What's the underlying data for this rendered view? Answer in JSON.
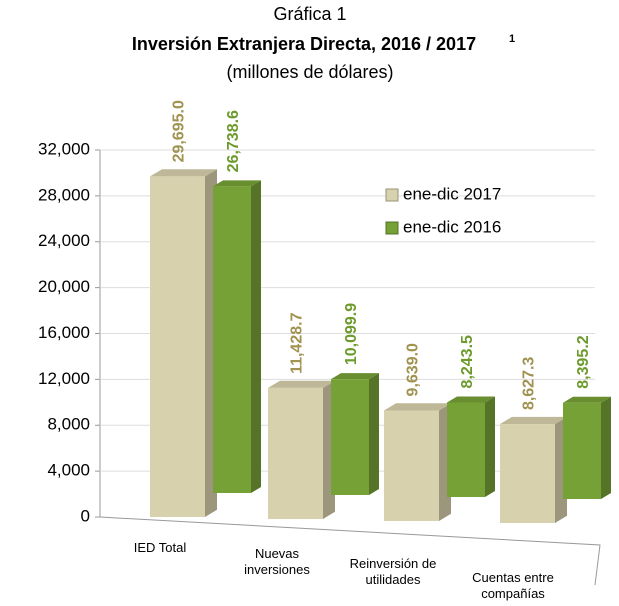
{
  "chart_data": {
    "type": "bar3d",
    "title_top": "Gráfica 1",
    "title": "Inversión Extranjera Directa, 2016 / 2017",
    "title_note": "1",
    "subtitle": "(millones de dólares)",
    "categories": [
      "IED Total",
      "Nuevas inversiones",
      "Reinversión de utilidades",
      "Cuentas entre compañías"
    ],
    "series": [
      {
        "name": "ene-dic 2017",
        "color": "#d8d1ad",
        "label_color": "#a0924f",
        "values": [
          29695.0,
          11428.7,
          9639.0,
          8627.3
        ],
        "value_labels": [
          "29,695.0",
          "11,428.7",
          "9,639.0",
          "8,627.3"
        ]
      },
      {
        "name": "ene-dic 2016",
        "color": "#76a136",
        "label_color": "#6c9b2c",
        "values": [
          26738.6,
          10099.9,
          8243.5,
          8395.2
        ],
        "value_labels": [
          "26,738.6",
          "10,099.9",
          "8,243.5",
          "8,395.2"
        ]
      }
    ],
    "ylim": [
      0,
      32000
    ],
    "yticks": [
      0,
      {
        "value": 4000,
        "label": "4,000"
      },
      {
        "value": 8000,
        "label": "8,000"
      },
      {
        "value": 12000,
        "label": "12,000"
      },
      {
        "value": 16000,
        "label": "16,000"
      },
      {
        "value": 20000,
        "label": "20,000"
      },
      {
        "value": 24000,
        "label": "24,000"
      },
      {
        "value": 28000,
        "label": "28,000"
      },
      {
        "value": 32000,
        "label": "32,000"
      }
    ],
    "grid": true,
    "legend": "upper-right"
  }
}
